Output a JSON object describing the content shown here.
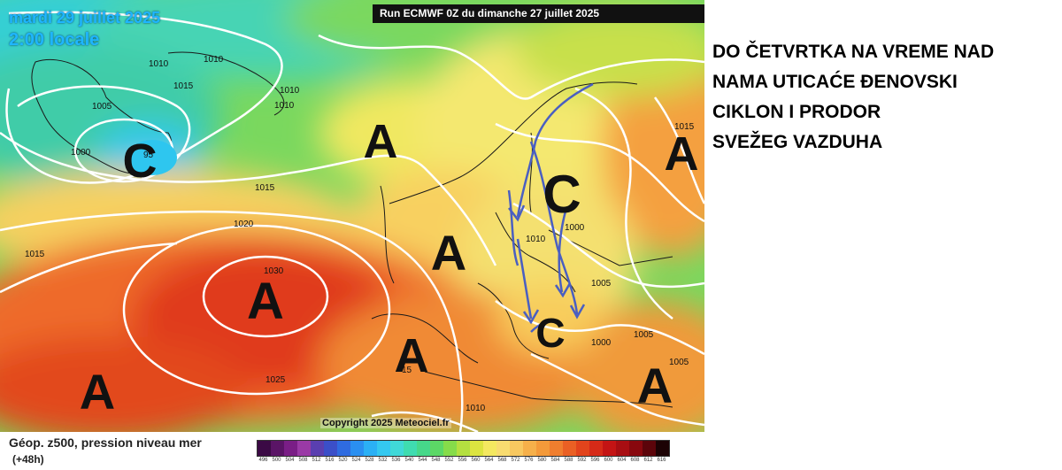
{
  "map": {
    "date_line1": "mardi 29 juillet 2025",
    "date_line2": "2:00 locale",
    "run_label": "Run ECMWF 0Z du dimanche 27 juillet 2025",
    "copyright": "Copyright 2025 Meteociel.fr",
    "systems": [
      "C",
      "A",
      "A",
      "A",
      "A",
      "A",
      "C",
      "C",
      "A",
      "A"
    ],
    "centre_value": "95",
    "isobar_labels": [
      "1010",
      "1010",
      "1015",
      "1005",
      "1000",
      "1010",
      "1010",
      "1015",
      "1020",
      "1015",
      "1030",
      "1025",
      "1010",
      "1000",
      "1005",
      "1000",
      "1005",
      "1005",
      "1015",
      "15",
      "1010"
    ],
    "colors": {
      "arrows": "#4a5fc1"
    }
  },
  "headline": {
    "lines": [
      "DO ČETVRTKA NA VREME NAD",
      "NAMA UTICAĆE ĐENOVSKI",
      "CIKLON I PRODOR",
      "SVEŽEG VAZDUHA"
    ]
  },
  "legend": {
    "title": "Géop. z500, pression niveau mer",
    "subtitle": "(+48h)",
    "scale_values": [
      "496",
      "500",
      "504",
      "508",
      "512",
      "516",
      "520",
      "524",
      "528",
      "532",
      "536",
      "540",
      "544",
      "548",
      "552",
      "556",
      "560",
      "564",
      "568",
      "572",
      "576",
      "580",
      "584",
      "588",
      "592",
      "596",
      "600",
      "604",
      "608",
      "612",
      "616"
    ],
    "scale_colors": [
      "#3b0a45",
      "#5a1466",
      "#7a1e86",
      "#9a3aa6",
      "#5a3fb0",
      "#3b4fc8",
      "#2f6be0",
      "#2a8ff0",
      "#2bb0f5",
      "#34c8f0",
      "#40d8d8",
      "#3fdcb0",
      "#46d88a",
      "#5cd866",
      "#86dc4a",
      "#b4e040",
      "#dce440",
      "#f4e860",
      "#f8dc70",
      "#f8c860",
      "#f6b04a",
      "#f49a3a",
      "#f07e2e",
      "#ea6024",
      "#e2441c",
      "#d62a18",
      "#c41414",
      "#a80e12",
      "#88080e",
      "#5c040a",
      "#1c0204"
    ]
  }
}
